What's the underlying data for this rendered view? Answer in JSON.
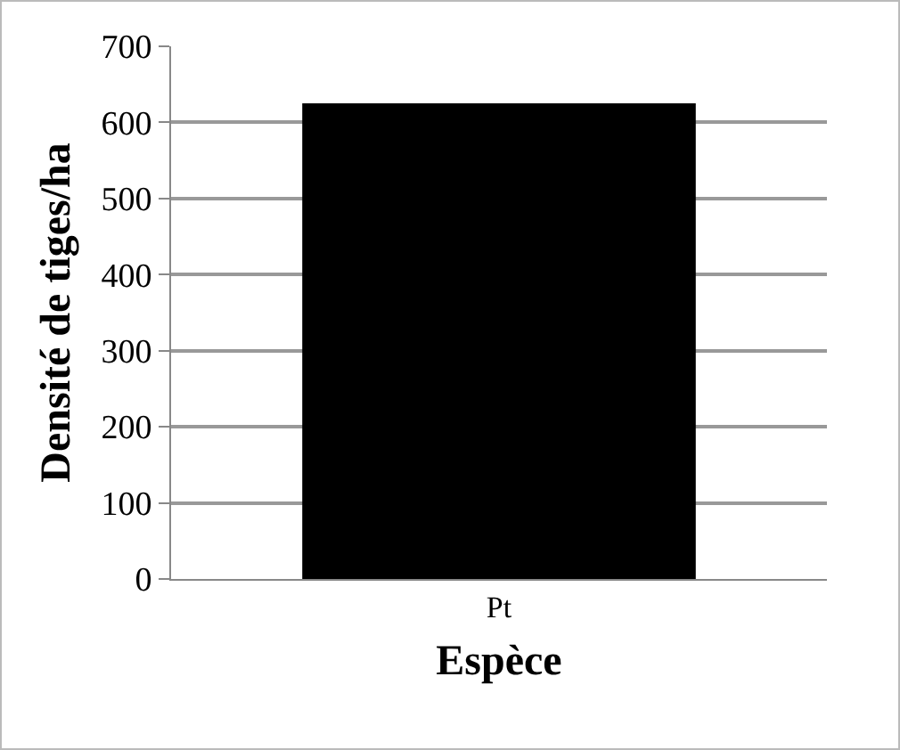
{
  "chart_data": {
    "type": "bar",
    "xlabel": "Espèce",
    "ylabel": "Densité de tiges/ha",
    "categories": [
      "Pt"
    ],
    "series": [
      {
        "color": "#000000",
        "values": [
          625
        ]
      }
    ],
    "ylim": [
      0,
      700
    ],
    "yticks": [
      0,
      100,
      200,
      300,
      400,
      500,
      600,
      700
    ],
    "grid": "y",
    "legend": false
  }
}
